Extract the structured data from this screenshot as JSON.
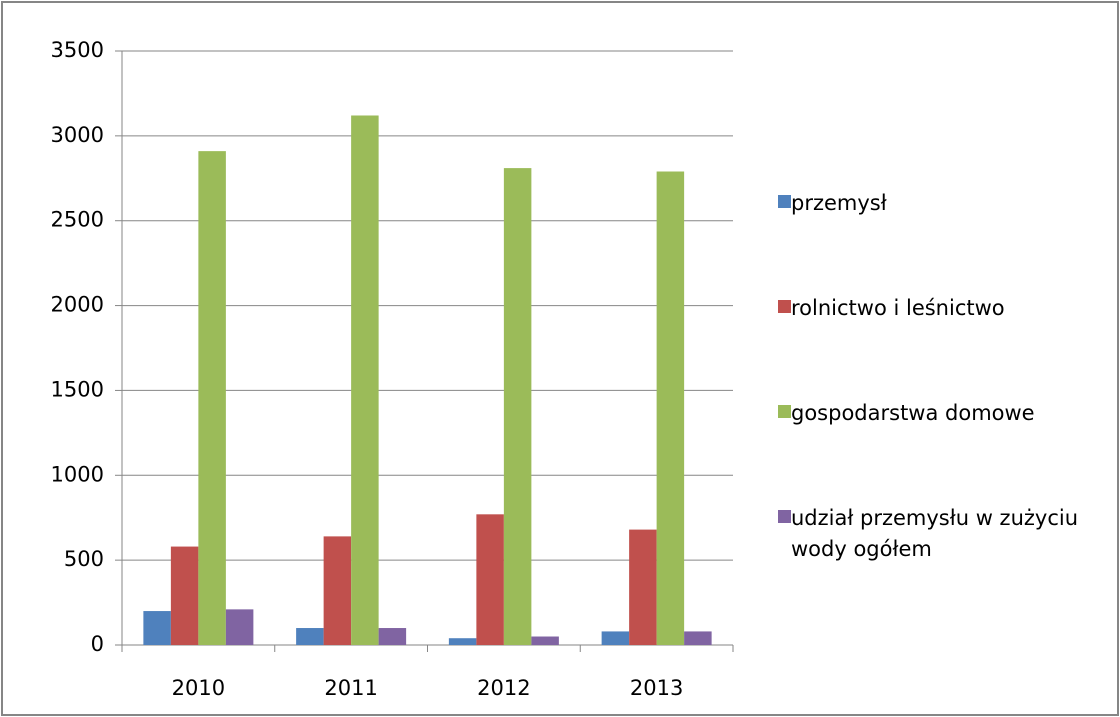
{
  "chart_data": {
    "type": "bar",
    "categories": [
      "2010",
      "2011",
      "2012",
      "2013"
    ],
    "series": [
      {
        "name": "przemysł",
        "color": "#4f81bd",
        "values": [
          200,
          100,
          40,
          80
        ]
      },
      {
        "name": "rolnictwo i leśnictwo",
        "color": "#c0504d",
        "values": [
          580,
          640,
          770,
          680
        ]
      },
      {
        "name": "gospodarstwa domowe",
        "color": "#9bbb59",
        "values": [
          2910,
          3120,
          2810,
          2790
        ]
      },
      {
        "name": "udział przemysłu w zużyciu wody ogółem",
        "color": "#8064a2",
        "values": [
          210,
          100,
          50,
          80
        ]
      }
    ],
    "ylim": [
      0,
      3500
    ],
    "yticks": [
      0,
      500,
      1000,
      1500,
      2000,
      2500,
      3000,
      3500
    ],
    "grid": true,
    "legend": "right"
  }
}
